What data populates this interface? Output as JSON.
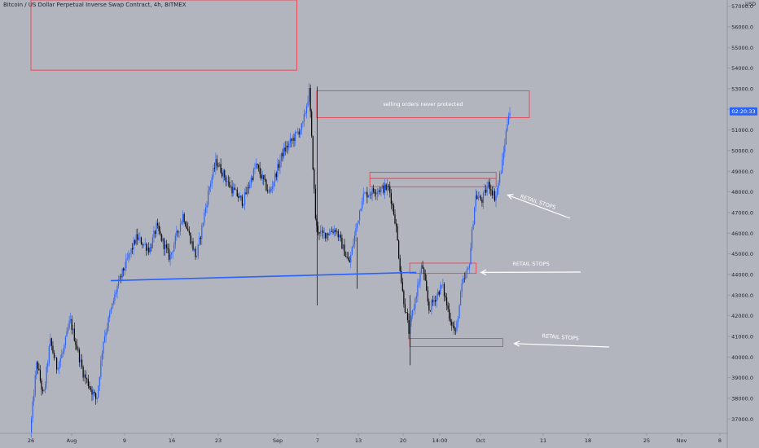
{
  "chart_title": "Bitcoin / US Dollar Perpetual Inverse Swap Contract, 4h, BITMEX",
  "currency": "USD",
  "price_label": "02:20:33",
  "chart_data": {
    "type": "candlestick",
    "title": "Bitcoin / US Dollar Perpetual Inverse Swap Contract, 4h, BITMEX",
    "y_axis": {
      "side": "right",
      "ticks": [
        "37000.0",
        "38000.0",
        "39000.0",
        "40000.0",
        "41000.0",
        "42000.0",
        "43000.0",
        "44000.0",
        "45000.0",
        "46000.0",
        "47000.0",
        "48000.0",
        "49000.0",
        "50000.0",
        "51000.0",
        "52000.0",
        "53000.0",
        "54000.0",
        "55000.0",
        "56000.0",
        "57000.0"
      ],
      "range": [
        36300,
        57300
      ]
    },
    "x_axis": {
      "ticks": [
        "26",
        "Aug",
        "9",
        "16",
        "23",
        "Sep",
        "7",
        "13",
        "20",
        "14:00",
        "Oct",
        "11",
        "18",
        "25",
        "Nov",
        "8"
      ]
    },
    "price_path": [
      [
        "Jul 26",
        36300
      ],
      [
        "Jul 27",
        39800
      ],
      [
        "Jul 28",
        38000
      ],
      [
        "Jul 29",
        40800
      ],
      [
        "Jul 30",
        39500
      ],
      [
        "Jul 31",
        40300
      ],
      [
        "Aug 1",
        41800
      ],
      [
        "Aug 3",
        39200
      ],
      [
        "Aug 5",
        37900
      ],
      [
        "Aug 6",
        40800
      ],
      [
        "Aug 8",
        43300
      ],
      [
        "Aug 9",
        44200
      ],
      [
        "Aug 11",
        45800
      ],
      [
        "Aug 13",
        45200
      ],
      [
        "Aug 14",
        46300
      ],
      [
        "Aug 16",
        44800
      ],
      [
        "Aug 18",
        46900
      ],
      [
        "Aug 20",
        44800
      ],
      [
        "Aug 22",
        48300
      ],
      [
        "Aug 23",
        49500
      ],
      [
        "Aug 25",
        48300
      ],
      [
        "Aug 27",
        47500
      ],
      [
        "Aug 29",
        49300
      ],
      [
        "Aug 31",
        47900
      ],
      [
        "Sep 2",
        49900
      ],
      [
        "Sep 5",
        51200
      ],
      [
        "Sep 6",
        52900
      ],
      [
        "Sep 7",
        46300
      ],
      [
        "Sep 8",
        45900
      ],
      [
        "Sep 10",
        46200
      ],
      [
        "Sep 12",
        44500
      ],
      [
        "Sep 14",
        47800
      ],
      [
        "Sep 16",
        48100
      ],
      [
        "Sep 18",
        48200
      ],
      [
        "Sep 19",
        46500
      ],
      [
        "Sep 20",
        43200
      ],
      [
        "Sep 21",
        41200
      ],
      [
        "Sep 22",
        42900
      ],
      [
        "Sep 23",
        44500
      ],
      [
        "Sep 24",
        42300
      ],
      [
        "Sep 26",
        43500
      ],
      [
        "Sep 27",
        42100
      ],
      [
        "Sep 28",
        41100
      ],
      [
        "Sep 29",
        43500
      ],
      [
        "Sep 30",
        44300
      ],
      [
        "Oct 1",
        47800
      ],
      [
        "Oct 2",
        47600
      ],
      [
        "Oct 3",
        48400
      ],
      [
        "Oct 4",
        47700
      ],
      [
        "Oct 5",
        49300
      ],
      [
        "Oct 6",
        51900
      ]
    ],
    "trendline": {
      "from": [
        "Aug 7",
        43700
      ],
      "to": [
        "Sep 22",
        44100
      ],
      "color": "#2962ff"
    },
    "zones": [
      {
        "from": [
          "Jul 26",
          57300
        ],
        "to": [
          "Sep 4",
          53900
        ],
        "label": ""
      },
      {
        "from": [
          "Sep 7",
          52900
        ],
        "to": [
          "Oct 9",
          51600
        ],
        "label": "selling orders never protected"
      },
      {
        "from": [
          "Sep 15",
          48950
        ],
        "to": [
          "Oct 4",
          48650
        ],
        "label": ""
      },
      {
        "from": [
          "Sep 15",
          48650
        ],
        "to": [
          "Oct 4",
          48250
        ],
        "label": ""
      },
      {
        "from": [
          "Sep 21",
          44550
        ],
        "to": [
          "Oct 1",
          44050
        ],
        "label": ""
      },
      {
        "from": [
          "Sep 21",
          40900
        ],
        "to": [
          "Oct 5",
          40500
        ],
        "label": ""
      }
    ],
    "annotations": [
      {
        "text": "RETAIL STOPS",
        "arrow_to": [
          "Oct 5",
          47850
        ]
      },
      {
        "text": "RETAIL STOPS",
        "arrow_to": [
          "Oct 1",
          44100
        ]
      },
      {
        "text": "RETAIL STOPS",
        "arrow_to": [
          "Oct 6",
          40650
        ]
      }
    ],
    "last_price": 51900,
    "colors": {
      "up_candle": "#2962ff",
      "down_candle": "#000000",
      "zone": "#f23645",
      "arrow": "#ffffff",
      "last_price_label": "#2962ff"
    }
  }
}
